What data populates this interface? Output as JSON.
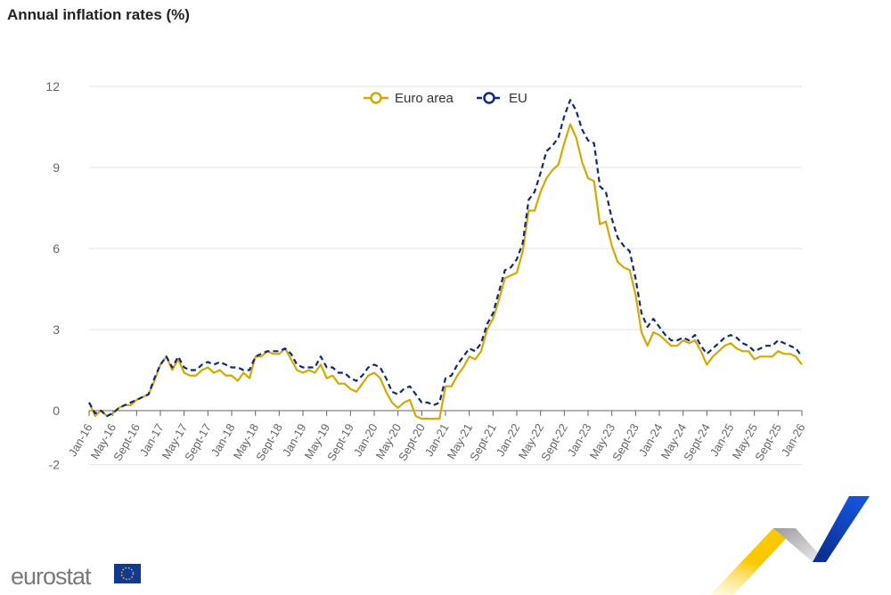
{
  "chart_data": {
    "type": "line",
    "title": "Annual inflation rates (%)",
    "xlabel": "",
    "ylabel": "",
    "ylim": [
      -2,
      12
    ],
    "yticks": [
      -2,
      0,
      3,
      6,
      9,
      12
    ],
    "grid": true,
    "legend_placement": "top-center",
    "x_start": "2016-01",
    "x_end": "2026-01",
    "xtick_labels": [
      "Jan-16",
      "May-16",
      "Sept-16",
      "Jan-17",
      "May-17",
      "Sept-17",
      "Jan-18",
      "May-18",
      "Sept-18",
      "Jan-19",
      "May-19",
      "Sept-19",
      "Jan-20",
      "May-20",
      "Sept-20",
      "Jan-21",
      "May-21",
      "Sept-21",
      "Jan-22",
      "May-22",
      "Sept-22",
      "Jan-23",
      "May-23",
      "Sept-23",
      "Jan-24",
      "May-24",
      "Sept-24",
      "Jan-25",
      "May-25",
      "Sept-25",
      "Jan-26"
    ],
    "series": [
      {
        "name": "Euro area",
        "color": "#d4a900",
        "style": "solid",
        "values": [
          0.3,
          -0.2,
          0.0,
          -0.2,
          -0.1,
          0.1,
          0.2,
          0.2,
          0.4,
          0.5,
          0.6,
          1.1,
          1.7,
          2.0,
          1.5,
          1.9,
          1.4,
          1.3,
          1.3,
          1.5,
          1.6,
          1.4,
          1.5,
          1.3,
          1.3,
          1.1,
          1.4,
          1.2,
          2.0,
          2.0,
          2.2,
          2.1,
          2.1,
          2.3,
          1.9,
          1.5,
          1.4,
          1.5,
          1.4,
          1.7,
          1.2,
          1.3,
          1.0,
          1.0,
          0.8,
          0.7,
          1.0,
          1.3,
          1.4,
          1.2,
          0.7,
          0.3,
          0.1,
          0.3,
          0.4,
          -0.2,
          -0.3,
          -0.3,
          -0.3,
          -0.3,
          0.9,
          0.9,
          1.3,
          1.6,
          2.0,
          1.9,
          2.2,
          3.0,
          3.4,
          4.1,
          4.9,
          5.0,
          5.1,
          5.9,
          7.4,
          7.4,
          8.1,
          8.6,
          8.9,
          9.1,
          9.9,
          10.6,
          10.1,
          9.2,
          8.6,
          8.5,
          6.9,
          7.0,
          6.1,
          5.5,
          5.3,
          5.2,
          4.3,
          2.9,
          2.4,
          2.9,
          2.8,
          2.6,
          2.4,
          2.4,
          2.6,
          2.5,
          2.6,
          2.2,
          1.7,
          2.0,
          2.2,
          2.4,
          2.5,
          2.3,
          2.2,
          2.2,
          1.9,
          2.0,
          2.0,
          2.0,
          2.2,
          2.1,
          2.1,
          2.0,
          1.7
        ]
      },
      {
        "name": "EU",
        "color": "#0e2a7a",
        "style": "dashed",
        "values": [
          0.3,
          -0.1,
          0.0,
          -0.2,
          -0.1,
          0.1,
          0.2,
          0.3,
          0.4,
          0.5,
          0.6,
          1.2,
          1.7,
          2.0,
          1.6,
          2.0,
          1.6,
          1.5,
          1.5,
          1.7,
          1.8,
          1.7,
          1.8,
          1.7,
          1.6,
          1.6,
          1.5,
          1.5,
          2.0,
          2.1,
          2.2,
          2.2,
          2.2,
          2.3,
          2.1,
          1.7,
          1.6,
          1.6,
          1.6,
          2.0,
          1.6,
          1.6,
          1.4,
          1.4,
          1.2,
          1.1,
          1.3,
          1.6,
          1.7,
          1.6,
          1.2,
          0.7,
          0.6,
          0.8,
          0.9,
          0.6,
          0.3,
          0.3,
          0.2,
          0.3,
          1.2,
          1.3,
          1.7,
          2.0,
          2.3,
          2.2,
          2.5,
          3.2,
          3.6,
          4.4,
          5.2,
          5.3,
          5.6,
          6.2,
          7.8,
          8.1,
          8.8,
          9.6,
          9.8,
          10.1,
          10.9,
          11.5,
          11.1,
          10.4,
          10.0,
          9.9,
          8.3,
          8.1,
          7.1,
          6.4,
          6.1,
          5.9,
          4.9,
          3.6,
          3.1,
          3.4,
          3.1,
          2.8,
          2.6,
          2.6,
          2.7,
          2.6,
          2.8,
          2.4,
          2.1,
          2.3,
          2.5,
          2.7,
          2.8,
          2.7,
          2.5,
          2.4,
          2.2,
          2.3,
          2.4,
          2.4,
          2.6,
          2.5,
          2.4,
          2.3,
          2.0
        ]
      }
    ]
  },
  "branding": {
    "logo_text": "eurostat"
  }
}
